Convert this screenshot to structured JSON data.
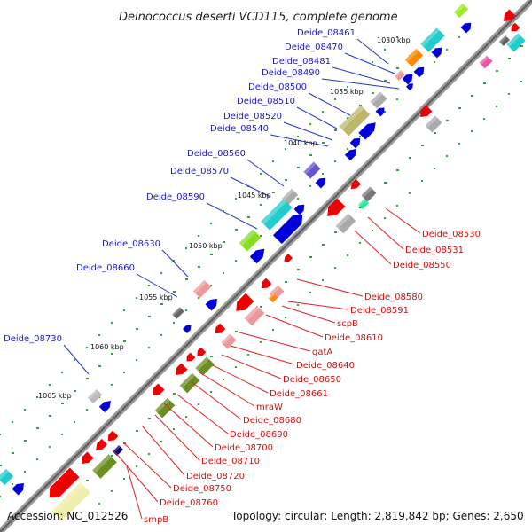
{
  "title": "Deinococcus deserti VCD115, complete genome",
  "footer": {
    "accession": "Accession: NC_012526",
    "summary": "Topology: circular; Length: 2,819,842 bp; Genes: 2,650"
  },
  "ticks": [
    "1030 kbp",
    "1035 kbp",
    "1040 kbp",
    "1045 kbp",
    "1050 kbp",
    "1055 kbp",
    "1060 kbp",
    "1065 kbp"
  ],
  "genes_forward": [
    "Deide_08461",
    "Deide_08470",
    "Deide_08481",
    "Deide_08490",
    "Deide_08500",
    "Deide_08510",
    "Deide_08520",
    "Deide_08540",
    "Deide_08560",
    "Deide_08570",
    "Deide_08590",
    "Deide_08630",
    "Deide_08660",
    "Deide_08730"
  ],
  "genes_reverse": [
    "Deide_08530",
    "Deide_08531",
    "Deide_08550",
    "Deide_08580",
    "Deide_08591",
    "scpB",
    "Deide_08610",
    "gatA",
    "Deide_08640",
    "Deide_08650",
    "Deide_08661",
    "mraW",
    "Deide_08680",
    "Deide_08690",
    "Deide_08700",
    "Deide_08710",
    "Deide_08720",
    "Deide_08750",
    "Deide_08760",
    "smpB"
  ],
  "colors": {
    "forward_label": "#1a1acc",
    "reverse_label": "#cc1111",
    "backbone": "#888888",
    "cds_forward": "#0000dd",
    "cds_reverse": "#ee0000"
  }
}
